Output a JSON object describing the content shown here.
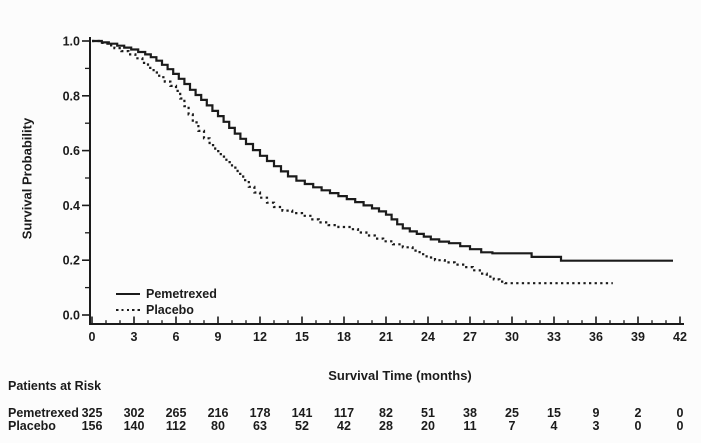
{
  "figure": {
    "background": "#fcfcfc",
    "ink_color": "#1b1b1b"
  },
  "chart_data": {
    "type": "line",
    "subtype": "kaplan-meier-step-curve",
    "title": "",
    "xlabel": "Survival Time (months)",
    "ylabel": "Survival Probability",
    "xlim": [
      0,
      42
    ],
    "ylim": [
      0.0,
      1.0
    ],
    "grid": false,
    "x_major_ticks": [
      0,
      3,
      6,
      9,
      12,
      15,
      18,
      21,
      24,
      27,
      30,
      33,
      36,
      39,
      42
    ],
    "x_minor_tick_interval": 1,
    "y_ticks": [
      {
        "v": 1.0,
        "label": "1.0"
      },
      {
        "v": 0.8,
        "label": "0.8"
      },
      {
        "v": 0.6,
        "label": "0.6"
      },
      {
        "v": 0.4,
        "label": "0.4"
      },
      {
        "v": 0.2,
        "label": "0.2"
      },
      {
        "v": 0.0,
        "label": "0.0"
      }
    ],
    "y_minor_ticks": [
      0.9,
      0.7,
      0.5,
      0.3,
      0.1
    ],
    "legend": {
      "position": "lower-left",
      "entries": [
        {
          "label": "Pemetrexed",
          "style": "solid"
        },
        {
          "label": "Placebo",
          "style": "dotted"
        }
      ]
    },
    "series": [
      {
        "name": "Pemetrexed",
        "style": "solid",
        "points": [
          [
            0,
            1.0
          ],
          [
            0.7,
            0.995
          ],
          [
            1.2,
            0.99
          ],
          [
            1.8,
            0.983
          ],
          [
            2.3,
            0.976
          ],
          [
            2.8,
            0.969
          ],
          [
            3.3,
            0.96
          ],
          [
            3.8,
            0.951
          ],
          [
            4.2,
            0.941
          ],
          [
            4.6,
            0.928
          ],
          [
            5.0,
            0.913
          ],
          [
            5.4,
            0.897
          ],
          [
            5.8,
            0.88
          ],
          [
            6.2,
            0.862
          ],
          [
            6.6,
            0.843
          ],
          [
            7.0,
            0.822
          ],
          [
            7.4,
            0.803
          ],
          [
            7.8,
            0.785
          ],
          [
            8.2,
            0.765
          ],
          [
            8.6,
            0.745
          ],
          [
            9.0,
            0.726
          ],
          [
            9.4,
            0.705
          ],
          [
            9.8,
            0.683
          ],
          [
            10.2,
            0.662
          ],
          [
            10.6,
            0.643
          ],
          [
            11.0,
            0.624
          ],
          [
            11.5,
            0.602
          ],
          [
            12.0,
            0.581
          ],
          [
            12.5,
            0.562
          ],
          [
            13.0,
            0.543
          ],
          [
            13.5,
            0.524
          ],
          [
            14.0,
            0.506
          ],
          [
            14.6,
            0.49
          ],
          [
            15.2,
            0.478
          ],
          [
            15.8,
            0.466
          ],
          [
            16.4,
            0.455
          ],
          [
            17.0,
            0.445
          ],
          [
            17.6,
            0.434
          ],
          [
            18.2,
            0.423
          ],
          [
            18.8,
            0.412
          ],
          [
            19.4,
            0.4
          ],
          [
            20.0,
            0.389
          ],
          [
            20.5,
            0.378
          ],
          [
            21.0,
            0.366
          ],
          [
            21.4,
            0.349
          ],
          [
            21.8,
            0.331
          ],
          [
            22.2,
            0.316
          ],
          [
            22.7,
            0.305
          ],
          [
            23.2,
            0.296
          ],
          [
            23.7,
            0.286
          ],
          [
            24.2,
            0.276
          ],
          [
            24.8,
            0.268
          ],
          [
            25.5,
            0.262
          ],
          [
            26.3,
            0.251
          ],
          [
            27.0,
            0.24
          ],
          [
            27.8,
            0.229
          ],
          [
            28.6,
            0.225
          ],
          [
            31.4,
            0.212
          ],
          [
            33.5,
            0.198
          ],
          [
            41.5,
            0.198
          ]
        ]
      },
      {
        "name": "Placebo",
        "style": "dotted",
        "points": [
          [
            0,
            1.0
          ],
          [
            0.6,
            0.993
          ],
          [
            1.1,
            0.984
          ],
          [
            1.6,
            0.974
          ],
          [
            2.1,
            0.963
          ],
          [
            2.6,
            0.951
          ],
          [
            3.1,
            0.937
          ],
          [
            3.6,
            0.92
          ],
          [
            4.0,
            0.902
          ],
          [
            4.4,
            0.885
          ],
          [
            4.8,
            0.868
          ],
          [
            5.2,
            0.852
          ],
          [
            5.6,
            0.836
          ],
          [
            6.0,
            0.818
          ],
          [
            6.3,
            0.79
          ],
          [
            6.6,
            0.762
          ],
          [
            6.9,
            0.732
          ],
          [
            7.2,
            0.703
          ],
          [
            7.6,
            0.672
          ],
          [
            8.0,
            0.645
          ],
          [
            8.4,
            0.62
          ],
          [
            8.8,
            0.598
          ],
          [
            9.2,
            0.578
          ],
          [
            9.6,
            0.558
          ],
          [
            10.0,
            0.538
          ],
          [
            10.4,
            0.515
          ],
          [
            10.8,
            0.492
          ],
          [
            11.2,
            0.468
          ],
          [
            11.6,
            0.447
          ],
          [
            12.0,
            0.428
          ],
          [
            12.5,
            0.41
          ],
          [
            13.0,
            0.394
          ],
          [
            13.6,
            0.381
          ],
          [
            14.3,
            0.372
          ],
          [
            15.0,
            0.362
          ],
          [
            15.6,
            0.349
          ],
          [
            16.2,
            0.338
          ],
          [
            16.9,
            0.328
          ],
          [
            17.6,
            0.321
          ],
          [
            18.4,
            0.313
          ],
          [
            19.0,
            0.301
          ],
          [
            19.6,
            0.29
          ],
          [
            20.2,
            0.279
          ],
          [
            20.8,
            0.269
          ],
          [
            21.5,
            0.258
          ],
          [
            22.2,
            0.247
          ],
          [
            22.9,
            0.235
          ],
          [
            23.4,
            0.222
          ],
          [
            23.9,
            0.21
          ],
          [
            24.5,
            0.2
          ],
          [
            25.2,
            0.192
          ],
          [
            25.9,
            0.184
          ],
          [
            26.6,
            0.175
          ],
          [
            27.2,
            0.163
          ],
          [
            27.7,
            0.151
          ],
          [
            28.2,
            0.14
          ],
          [
            28.7,
            0.13
          ],
          [
            29.1,
            0.122
          ],
          [
            29.5,
            0.116
          ],
          [
            37.2,
            0.116
          ]
        ]
      }
    ]
  },
  "risk_table": {
    "title": "Patients at Risk",
    "time_points": [
      0,
      3,
      6,
      9,
      12,
      15,
      18,
      21,
      24,
      27,
      30,
      33,
      36,
      39,
      42
    ],
    "rows": [
      {
        "label": "Pemetrexed",
        "counts": [
          325,
          302,
          265,
          216,
          178,
          141,
          117,
          82,
          51,
          38,
          25,
          15,
          9,
          2,
          0
        ]
      },
      {
        "label": "Placebo",
        "counts": [
          156,
          140,
          112,
          80,
          63,
          52,
          42,
          28,
          20,
          11,
          7,
          4,
          3,
          0,
          0
        ]
      }
    ]
  }
}
